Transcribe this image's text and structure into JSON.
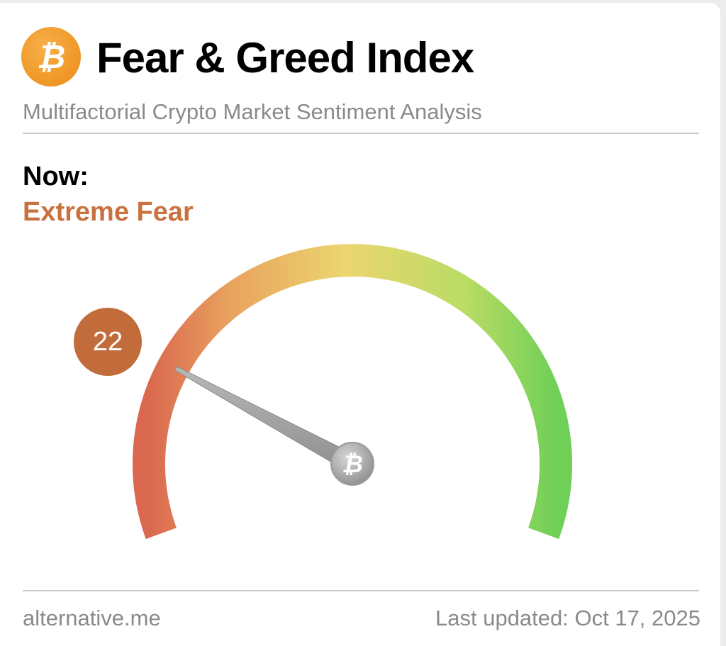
{
  "header": {
    "logo_icon": "bitcoin-icon",
    "title": "Fear & Greed Index",
    "subtitle": "Multifactorial Crypto Market Sentiment Analysis"
  },
  "current": {
    "now_label": "Now:",
    "classification": "Extreme Fear",
    "value": "22",
    "value_number": 22,
    "scale_min": 0,
    "scale_max": 100
  },
  "gauge": {
    "needle_hub_icon": "bitcoin-icon",
    "gradient_colors": [
      "#d9684f",
      "#e9a25e",
      "#edd673",
      "#b5db63",
      "#6fcf57"
    ],
    "classification_color": "#c9713f",
    "badge_color": "#c36c3b"
  },
  "footer": {
    "source": "alternative.me",
    "last_updated": "Last updated: Oct 17, 2025"
  }
}
